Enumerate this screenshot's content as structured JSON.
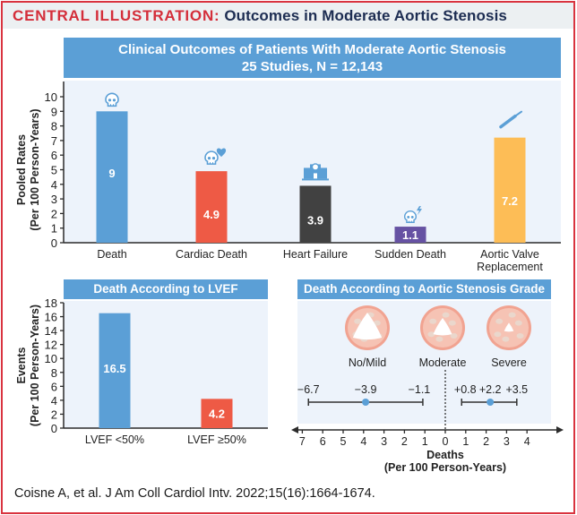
{
  "header": {
    "label": "CENTRAL ILLUSTRATION:",
    "title": "Outcomes in Moderate Aortic Stenosis"
  },
  "top_panel": {
    "title_line1": "Clinical Outcomes of Patients With Moderate Aortic Stenosis",
    "title_line2": "25 Studies, N = 12,143"
  },
  "lvef_panel": {
    "title": "Death According to LVEF"
  },
  "grade_panel": {
    "title": "Death According to Aortic Stenosis Grade",
    "valve_labels": [
      "No/Mild",
      "Moderate",
      "Severe"
    ]
  },
  "citation": "Coisne A, et al. J Am Coll Cardiol Intv. 2022;15(16):1664-1674.",
  "colors": {
    "blue": "#5b9fd6",
    "red": "#ee5a45",
    "dark": "#414141",
    "purple": "#6652a3",
    "yellow": "#fdbd56",
    "brand_red": "#d42e3a",
    "navy": "#1d2d52"
  },
  "chart_data": [
    {
      "type": "bar",
      "title": "Clinical Outcomes of Patients With Moderate Aortic Stenosis",
      "subtitle": "25 Studies, N = 12,143",
      "categories": [
        "Death",
        "Cardiac Death",
        "Heart Failure",
        "Sudden Death",
        "Aortic Valve Replacement"
      ],
      "category_lines": [
        [
          "Death"
        ],
        [
          "Cardiac Death"
        ],
        [
          "Heart Failure"
        ],
        [
          "Sudden Death"
        ],
        [
          "Aortic Valve",
          "Replacement"
        ]
      ],
      "values": [
        9,
        4.9,
        3.9,
        1.1,
        7.2
      ],
      "value_labels": [
        "9",
        "4.9",
        "3.9",
        "1.1",
        "7.2"
      ],
      "bar_colors": [
        "#5b9fd6",
        "#ee5a45",
        "#414141",
        "#6652a3",
        "#fdbd56"
      ],
      "icons": [
        "skull-icon",
        "skull-heart-icon",
        "hospital-icon",
        "skull-lightning-icon",
        "scalpel-icon"
      ],
      "xlabel": "",
      "ylabel": [
        "Pooled Rates",
        "(Per 100 Person-Years)"
      ],
      "ylim": [
        0,
        10
      ],
      "yticks": [
        0,
        1,
        2,
        3,
        4,
        5,
        6,
        7,
        8,
        9,
        10
      ],
      "grid": false
    },
    {
      "type": "bar",
      "title": "Death According to LVEF",
      "categories": [
        "LVEF <50%",
        "LVEF ≥50%"
      ],
      "values": [
        16.5,
        4.2
      ],
      "value_labels": [
        "16.5",
        "4.2"
      ],
      "bar_colors": [
        "#5b9fd6",
        "#ee5a45"
      ],
      "xlabel": "",
      "ylabel": [
        "Events",
        "(Per 100 Person-Years)"
      ],
      "ylim": [
        0,
        18
      ],
      "yticks": [
        0,
        2,
        4,
        6,
        8,
        10,
        12,
        14,
        16,
        18
      ],
      "grid": false
    },
    {
      "type": "scatter",
      "subtype": "forest",
      "title": "Death According to Aortic Stenosis Grade",
      "reference": "Moderate",
      "series": [
        {
          "name": "No/Mild",
          "estimate": -3.9,
          "ci_low": -6.7,
          "ci_high": -1.1,
          "labels": [
            "−6.7",
            "−3.9",
            "−1.1"
          ]
        },
        {
          "name": "Severe",
          "estimate": 2.2,
          "ci_low": 0.8,
          "ci_high": 3.5,
          "labels": [
            "+0.8",
            "+2.2",
            "+3.5"
          ]
        }
      ],
      "xlabel": [
        "Deaths",
        "(Per 100 Person-Years)"
      ],
      "xlim": [
        -7,
        4
      ],
      "xticks": [
        -7,
        -6,
        -5,
        -4,
        -3,
        -2,
        -1,
        0,
        1,
        2,
        3,
        4
      ],
      "xtick_labels": [
        "7",
        "6",
        "5",
        "4",
        "3",
        "2",
        "1",
        "0",
        "1",
        "2",
        "3",
        "4"
      ]
    }
  ]
}
